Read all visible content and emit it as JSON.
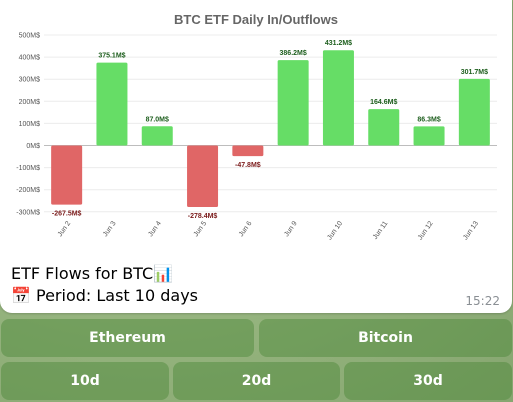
{
  "message": {
    "caption_title": "ETF Flows for BTC📊",
    "caption_period": "📅 Period: Last 10 days",
    "time": "15:22"
  },
  "keyboard": {
    "row1": [
      "Ethereum",
      "Bitcoin"
    ],
    "row2": [
      "10d",
      "20d",
      "30d"
    ]
  },
  "chart_data": {
    "type": "bar",
    "title": "BTC ETF Daily In/Outflows",
    "categories": [
      "Jun 2",
      "Jun 3",
      "Jun 4",
      "Jun 5",
      "Jun 6",
      "Jun 9",
      "Jun 10",
      "Jun 11",
      "Jun 12",
      "Jun 13"
    ],
    "values": [
      -267.5,
      375.1,
      87.0,
      -278.4,
      -47.8,
      386.2,
      431.2,
      164.6,
      86.3,
      301.7
    ],
    "value_labels": [
      "-267.5M$",
      "375.1M$",
      "87.0M$",
      "-278.4M$",
      "-47.8M$",
      "386.2M$",
      "431.2M$",
      "164.6M$",
      "86.3M$",
      "301.7M$"
    ],
    "y_ticks": [
      500,
      400,
      300,
      200,
      100,
      0,
      -100,
      -200,
      -300
    ],
    "y_tick_labels": [
      "500M$",
      "400M$",
      "300M$",
      "200M$",
      "100M$",
      "0M$",
      "-100M$",
      "-200M$",
      "-300M$"
    ],
    "ylim": [
      -300,
      500
    ],
    "grid": true,
    "colors": {
      "positive": "#66dd66",
      "negative": "#e06666",
      "positive_label": "#1d5e1d",
      "negative_label": "#7a1a1a"
    }
  }
}
